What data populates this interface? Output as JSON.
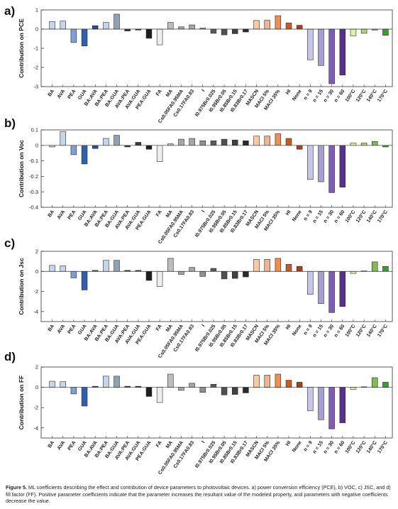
{
  "chart_data": [
    {
      "type": "bar",
      "panel": "a)",
      "ylabel": "Contribution on PCE",
      "ylim": [
        -3,
        1
      ],
      "yticks": [
        1,
        0,
        -1,
        -2,
        -3
      ],
      "categories": [
        "BA",
        "AVA",
        "PEA",
        "GUA",
        "BA:AVA",
        "BA:PEA",
        "BA:GUA",
        "AVA:PEA",
        "AVA:GUA",
        "PEA:GUA",
        "FA",
        "MA",
        "Cs0.05FA0.95MA",
        "Cs0.17FA0.83",
        "I",
        "I0.975Br0.025",
        "I0.95Br0.05",
        "I0.85Br0.15",
        "I0.83Br0.17",
        "MASCN",
        "MACl 5%",
        "MACl 35%",
        "HI",
        "None",
        "n = 9",
        "n = 15",
        "n = 30",
        "n = 60",
        "100°C",
        "120°C",
        "140°C",
        "170°C"
      ],
      "values": [
        0.4,
        0.42,
        -0.7,
        -0.88,
        0.18,
        0.35,
        0.78,
        -0.1,
        -0.05,
        -0.48,
        -0.82,
        0.35,
        0.12,
        0.22,
        0.05,
        -0.22,
        -0.3,
        -0.24,
        -0.15,
        0.45,
        0.46,
        0.7,
        0.32,
        0.2,
        -1.6,
        -1.9,
        -2.85,
        -2.4,
        -0.35,
        -0.22,
        -0.05,
        -0.32
      ]
    },
    {
      "type": "bar",
      "panel": "b)",
      "ylabel": "Contribution on Voc",
      "ylim": [
        -0.4,
        0.1
      ],
      "yticks": [
        0.1,
        0,
        -0.1,
        -0.2,
        -0.3,
        -0.4
      ],
      "categories": [
        "BA",
        "AVA",
        "PEA",
        "GUA",
        "BA:AVA",
        "BA:PEA",
        "BA:GUA",
        "AVA:PEA",
        "AVA:GUA",
        "PEA:GUA",
        "FA",
        "MA",
        "Cs0.05FA0.95MA",
        "Cs0.17FA0.83",
        "I",
        "I0.975Br0.025",
        "I0.95Br0.05",
        "I0.85Br0.15",
        "I0.83Br0.17",
        "MASCN",
        "MACl 5%",
        "MACl 35%",
        "HI",
        "None",
        "n = 9",
        "n = 15",
        "n = 30",
        "n = 60",
        "100°C",
        "120°C",
        "140°C",
        "170°C"
      ],
      "values": [
        -0.01,
        0.09,
        -0.06,
        -0.12,
        -0.02,
        0.045,
        0.065,
        -0.01,
        0.02,
        -0.025,
        -0.105,
        0.01,
        0.04,
        0.045,
        0.03,
        0.03,
        0.04,
        0.035,
        0.03,
        0.06,
        0.06,
        0.075,
        0.045,
        -0.025,
        -0.22,
        -0.235,
        -0.305,
        -0.27,
        0.015,
        0.015,
        0.025,
        -0.01
      ]
    },
    {
      "type": "bar",
      "panel": "c)",
      "ylabel": "Contribution on Jsc",
      "ylim": [
        -5,
        2
      ],
      "yticks": [
        2,
        0,
        -2,
        -4
      ],
      "categories": [
        "BA",
        "AVA",
        "PEA",
        "GUA",
        "BA:AVA",
        "BA:PEA",
        "BA:GUA",
        "AVA:PEA",
        "AVA:GUA",
        "PEA:GUA",
        "FA",
        "MA",
        "Cs0.05FA0.95MA",
        "Cs0.17FA0.83",
        "I",
        "I0.975Br0.025",
        "I0.95Br0.05",
        "I0.85Br0.15",
        "I0.83Br0.17",
        "MASCN",
        "MACl 5%",
        "MACl 35%",
        "HI",
        "None",
        "n = 9",
        "n = 15",
        "n = 30",
        "n = 60",
        "100°C",
        "120°C",
        "140°C",
        "170°C"
      ],
      "values": [
        0.6,
        0.55,
        -0.65,
        -1.85,
        0.1,
        1.1,
        1.1,
        0.1,
        0.1,
        -0.9,
        -1.5,
        1.3,
        -0.3,
        0.4,
        -0.5,
        0.3,
        -0.75,
        -0.7,
        -0.55,
        1.2,
        1.2,
        1.3,
        0.7,
        0.5,
        -2.3,
        -3.2,
        -4.1,
        -3.5,
        -0.2,
        0.05,
        0.95,
        0.5
      ]
    },
    {
      "type": "bar",
      "panel": "d)",
      "ylabel": "Contribution on FF",
      "ylim": [
        -5,
        2
      ],
      "yticks": [
        2,
        0,
        -2,
        -4
      ],
      "categories": [
        "BA",
        "AVA",
        "PEA",
        "GUA",
        "BA:AVA",
        "BA:PEA",
        "BA:GUA",
        "AVA:PEA",
        "AVA:GUA",
        "PEA:GUA",
        "FA",
        "MA",
        "Cs0.05FA0.95MA",
        "Cs0.17FA0.83",
        "I",
        "I0.975Br0.025",
        "I0.95Br0.05",
        "I0.85Br0.15",
        "I0.83Br0.17",
        "MASCN",
        "MACl 5%",
        "MACl 35%",
        "HI",
        "None",
        "n = 9",
        "n = 15",
        "n = 30",
        "n = 60",
        "100°C",
        "120°C",
        "140°C",
        "170°C"
      ],
      "values": [
        0.6,
        0.55,
        -0.65,
        -1.85,
        0.1,
        1.1,
        1.1,
        0.1,
        0.1,
        -0.9,
        -1.5,
        1.3,
        -0.3,
        0.4,
        -0.5,
        0.3,
        -0.75,
        -0.7,
        -0.55,
        1.2,
        1.2,
        1.3,
        0.7,
        0.5,
        -2.3,
        -3.2,
        -4.1,
        -3.5,
        -0.2,
        0.05,
        0.95,
        0.5
      ]
    }
  ],
  "bar_colors": [
    "#c5d5ea",
    "#c5d5ea",
    "#7f9ed1",
    "#2f60ad",
    "#224f95",
    "#c5d5ea",
    "#8ea1b5",
    "#3b3b3b",
    "#3b3b3b",
    "#1e1e1e",
    "#ededed",
    "#bdbdbd",
    "#a6a6a6",
    "#a6a6a6",
    "#909090",
    "#5a5a5a",
    "#505050",
    "#404040",
    "#2a2a2a",
    "#f6c9a8",
    "#f2b48c",
    "#eb8f55",
    "#c85a23",
    "#a8401b",
    "#c8c6e6",
    "#a79fd3",
    "#7e5cb0",
    "#5b2f8f",
    "#daf0a9",
    "#a8d876",
    "#7bc04a",
    "#3d9b35"
  ],
  "caption": {
    "label": "Figure 5.",
    "text": "ML coefficients describing the effect and contribution of device parameters to photovoltaic devices. a) power conversion efficiency (PCE), b) VOC, c) JSC, and d) fill factor (FF). Positive parameter coefficients indicate that the parameter increases the resultant value of the modeled property, and parameters with negative coefficients decrease the value."
  }
}
